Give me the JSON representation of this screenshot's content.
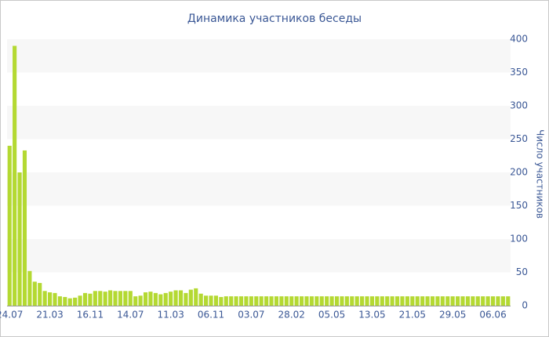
{
  "chart_data": {
    "type": "bar",
    "title": "Динамика участников беседы",
    "y_axis_label": "Число участников",
    "categories": [
      "24.07",
      null,
      null,
      null,
      null,
      null,
      null,
      null,
      "21.03",
      null,
      null,
      null,
      null,
      null,
      null,
      null,
      "16.11",
      null,
      null,
      null,
      null,
      null,
      null,
      null,
      "14.07",
      null,
      null,
      null,
      null,
      null,
      null,
      null,
      "11.03",
      null,
      null,
      null,
      null,
      null,
      null,
      null,
      "06.11",
      null,
      null,
      null,
      null,
      null,
      null,
      null,
      "03.07",
      null,
      null,
      null,
      null,
      null,
      null,
      null,
      "28.02",
      null,
      null,
      null,
      null,
      null,
      null,
      null,
      "05.05",
      null,
      null,
      null,
      null,
      null,
      null,
      null,
      "13.05",
      null,
      null,
      null,
      null,
      null,
      null,
      null,
      "21.05",
      null,
      null,
      null,
      null,
      null,
      null,
      null,
      "29.05",
      null,
      null,
      null,
      null,
      null,
      null,
      null,
      "06.06",
      null,
      null,
      null
    ],
    "values": [
      240,
      390,
      200,
      233,
      52,
      36,
      34,
      22,
      20,
      19,
      14,
      13,
      11,
      12,
      15,
      19,
      18,
      22,
      22,
      21,
      23,
      22,
      22,
      22,
      22,
      14,
      15,
      20,
      21,
      19,
      17,
      19,
      21,
      23,
      23,
      19,
      24,
      26,
      18,
      15,
      15,
      15,
      13,
      14,
      14,
      14,
      14,
      14,
      14,
      14,
      14,
      14,
      14,
      14,
      14,
      14,
      14,
      14,
      14,
      14,
      14,
      14,
      14,
      14,
      14,
      14,
      14,
      14,
      14,
      14,
      14,
      14,
      14,
      14,
      14,
      14,
      14,
      14,
      14,
      14,
      14,
      14,
      14,
      14,
      14,
      14,
      14,
      14,
      14,
      14,
      14,
      14,
      14,
      14,
      14,
      14,
      14,
      14,
      14,
      14
    ],
    "color": "#b4d932",
    "ylim": [
      0,
      400
    ],
    "yticks": [
      0,
      50,
      100,
      150,
      200,
      250,
      300,
      350,
      400
    ],
    "alternating_bands": true,
    "y_axis_side": "right"
  }
}
